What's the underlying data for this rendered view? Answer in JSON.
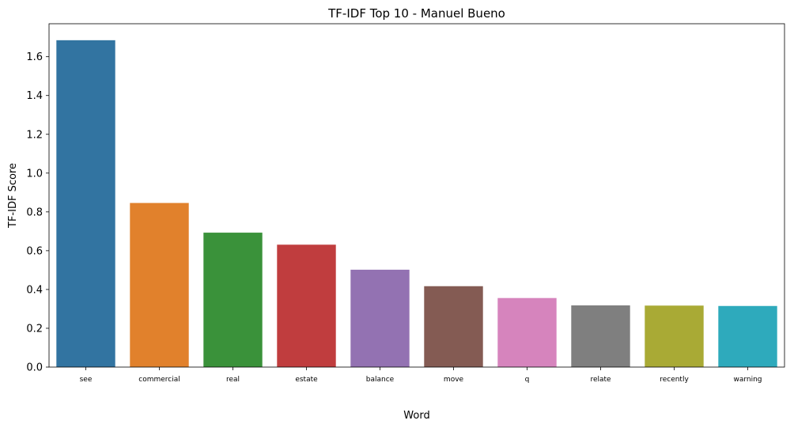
{
  "chart_data": {
    "type": "bar",
    "title": "TF-IDF Top 10 - Manuel Bueno",
    "xlabel": "Word",
    "ylabel": "TF-IDF Score",
    "categories": [
      "see",
      "commercial",
      "real",
      "estate",
      "balance",
      "move",
      "q",
      "relate",
      "recently",
      "warning"
    ],
    "values": [
      1.685,
      0.846,
      0.693,
      0.631,
      0.502,
      0.417,
      0.356,
      0.318,
      0.317,
      0.315
    ],
    "colors": [
      "#3274a1",
      "#e1812c",
      "#3a923a",
      "#c03d3e",
      "#9372b2",
      "#845b53",
      "#d684bd",
      "#7f7f7f",
      "#a9aa35",
      "#2eaabc"
    ],
    "ylim": [
      0,
      1.77
    ],
    "yticks": [
      0.0,
      0.2,
      0.4,
      0.6,
      0.8,
      1.0,
      1.2,
      1.4,
      1.6
    ],
    "ytick_labels": [
      "0.0",
      "0.2",
      "0.4",
      "0.6",
      "0.8",
      "1.0",
      "1.2",
      "1.4",
      "1.6"
    ],
    "grid": false,
    "legend": "none"
  }
}
